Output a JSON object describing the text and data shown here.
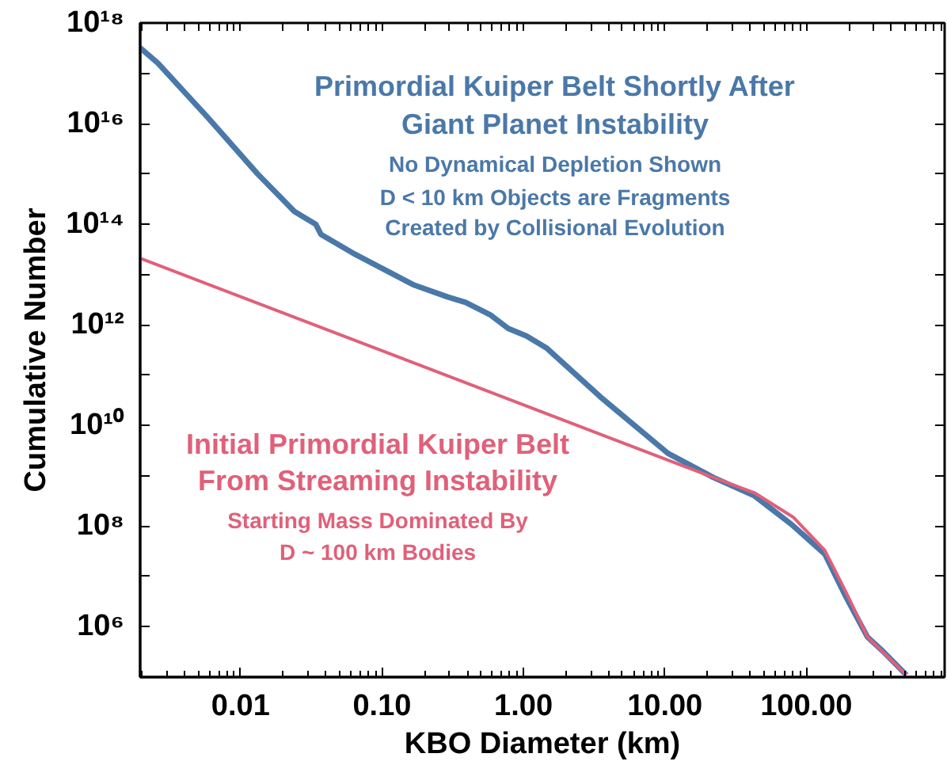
{
  "chart_data": {
    "type": "line",
    "xlabel": "KBO Diameter (km)",
    "ylabel": "Cumulative Number",
    "log": "xy",
    "grid": false,
    "marker": "none",
    "line_style": "solid",
    "xlim": [
      0.00195,
      950
    ],
    "ylim": [
      100000.0,
      1e+18
    ],
    "xticks": [
      {
        "value": 0.01,
        "label": "0.01"
      },
      {
        "value": 0.1,
        "label": "0.10"
      },
      {
        "value": 1,
        "label": "1.00"
      },
      {
        "value": 10,
        "label": "10.00"
      },
      {
        "value": 100,
        "label": "100.00"
      }
    ],
    "yticks": [
      {
        "value": 1000000.0,
        "label": "10⁶"
      },
      {
        "value": 10000000.0,
        "label": null
      },
      {
        "value": 100000000.0,
        "label": "10⁸"
      },
      {
        "value": 1000000000.0,
        "label": null
      },
      {
        "value": 10000000000.0,
        "label": "10¹⁰"
      },
      {
        "value": 100000000000.0,
        "label": null
      },
      {
        "value": 1000000000000.0,
        "label": "10¹²"
      },
      {
        "value": 10000000000000.0,
        "label": null
      },
      {
        "value": 100000000000000.0,
        "label": "10¹⁴"
      },
      {
        "value": 1000000000000000.0,
        "label": null
      },
      {
        "value": 1e+16,
        "label": "10¹⁶"
      },
      {
        "value": 1e+17,
        "label": null
      },
      {
        "value": 1e+18,
        "label": "10¹⁸"
      }
    ],
    "series": [
      {
        "color": "#4a78a8",
        "x": [
          0.00195,
          0.0026,
          0.0059,
          0.0132,
          0.024,
          0.034,
          0.037,
          0.065,
          0.166,
          0.29,
          0.39,
          0.58,
          0.78,
          1.05,
          1.45,
          3.5,
          10.5,
          22,
          43,
          78,
          135,
          190,
          270,
          350,
          510
        ],
        "values": [
          3.2e+17,
          1.6e+17,
          1.3e+16,
          1000000000000000.0,
          180000000000000.0,
          100000000000000.0,
          63000000000000.0,
          25000000000000.0,
          6300000000000.0,
          3600000000000.0,
          2800000000000.0,
          1600000000000.0,
          850000000000.0,
          600000000000.0,
          350000000000.0,
          37000000000.0,
          2800000000.0,
          930000000.0,
          400000000.0,
          110000000.0,
          28000000.0,
          4000000.0,
          630000.0,
          320000.0,
          110000.0
        ]
      },
      {
        "color": "#e0607a",
        "x": [
          0.00195,
          22,
          43,
          81,
          135,
          190,
          270,
          510
        ],
        "values": [
          21000000000000.0,
          930000000.0,
          460000000.0,
          150000000.0,
          33000000.0,
          5000000.0,
          630000.0,
          110000.0
        ]
      }
    ],
    "annotations": [
      "Primordial Kuiper Belt Shortly After",
      "Giant Planet Instability",
      "No Dynamical Depletion Shown",
      "D < 10 km Objects are Fragments",
      "Created by Collisional Evolution",
      "Initial Primordial Kuiper Belt",
      "From Streaming Instability",
      "Starting Mass Dominated By",
      "D ~ 100 km Bodies"
    ]
  }
}
